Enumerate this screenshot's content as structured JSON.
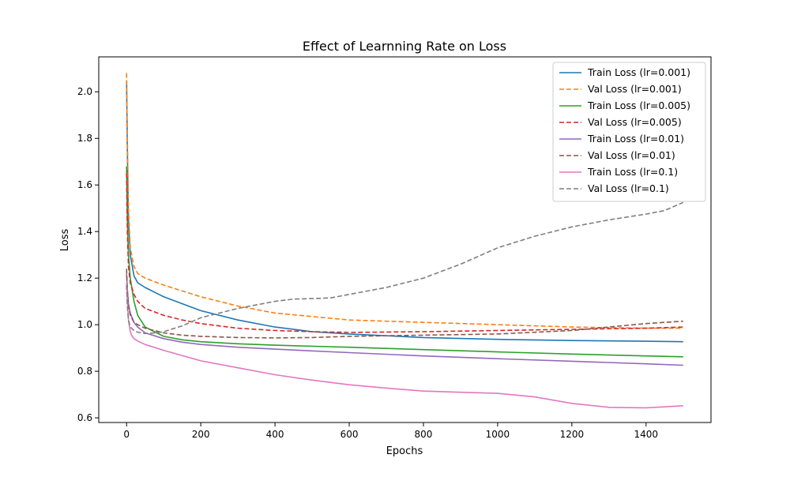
{
  "chart_data": {
    "type": "line",
    "title": "Effect of Learnning Rate on Loss",
    "xlabel": "Epochs",
    "ylabel": "Loss",
    "xlim": [
      -75,
      1575
    ],
    "ylim": [
      0.58,
      2.15
    ],
    "xticks": [
      0,
      200,
      400,
      600,
      800,
      1000,
      1200,
      1400
    ],
    "yticks": [
      0.6,
      0.8,
      1.0,
      1.2,
      1.4,
      1.6,
      1.8,
      2.0
    ],
    "grid": false,
    "legend_position": "top-right",
    "series": [
      {
        "name": "Train Loss (lr=0.001)",
        "color": "#1f77b4",
        "dash": "solid",
        "x": [
          0,
          2,
          5,
          10,
          20,
          30,
          50,
          100,
          200,
          300,
          400,
          500,
          600,
          800,
          1000,
          1200,
          1400,
          1500
        ],
        "y": [
          2.05,
          1.75,
          1.45,
          1.3,
          1.21,
          1.18,
          1.16,
          1.12,
          1.06,
          1.02,
          0.99,
          0.97,
          0.96,
          0.945,
          0.937,
          0.932,
          0.929,
          0.927
        ]
      },
      {
        "name": "Val Loss (lr=0.001)",
        "color": "#ff7f0e",
        "dash": "dashed",
        "x": [
          0,
          2,
          5,
          10,
          20,
          30,
          50,
          100,
          200,
          300,
          400,
          500,
          600,
          800,
          1000,
          1200,
          1400,
          1500
        ],
        "y": [
          2.08,
          1.8,
          1.5,
          1.33,
          1.25,
          1.22,
          1.2,
          1.17,
          1.12,
          1.08,
          1.05,
          1.035,
          1.02,
          1.01,
          1.0,
          0.99,
          0.985,
          0.985
        ]
      },
      {
        "name": "Train Loss (lr=0.005)",
        "color": "#2ca02c",
        "dash": "solid",
        "x": [
          0,
          2,
          5,
          10,
          20,
          30,
          50,
          100,
          150,
          200,
          300,
          400,
          600,
          800,
          1000,
          1200,
          1400,
          1500
        ],
        "y": [
          1.68,
          1.45,
          1.3,
          1.2,
          1.1,
          1.04,
          0.99,
          0.95,
          0.935,
          0.927,
          0.918,
          0.912,
          0.903,
          0.893,
          0.883,
          0.874,
          0.866,
          0.862
        ]
      },
      {
        "name": "Val Loss (lr=0.005)",
        "color": "#d62728",
        "dash": "dashed",
        "x": [
          0,
          2,
          5,
          10,
          20,
          30,
          50,
          100,
          150,
          200,
          300,
          400,
          500,
          600,
          800,
          1000,
          1200,
          1400,
          1500
        ],
        "y": [
          1.65,
          1.4,
          1.25,
          1.18,
          1.13,
          1.1,
          1.07,
          1.04,
          1.02,
          1.005,
          0.985,
          0.975,
          0.97,
          0.967,
          0.97,
          0.975,
          0.98,
          0.985,
          0.99
        ]
      },
      {
        "name": "Train Loss (lr=0.01)",
        "color": "#9467bd",
        "dash": "solid",
        "x": [
          0,
          2,
          5,
          10,
          20,
          30,
          50,
          100,
          150,
          200,
          300,
          400,
          600,
          800,
          1000,
          1200,
          1400,
          1500
        ],
        "y": [
          1.22,
          1.15,
          1.09,
          1.05,
          1.01,
          0.99,
          0.965,
          0.94,
          0.925,
          0.915,
          0.903,
          0.895,
          0.88,
          0.866,
          0.854,
          0.843,
          0.832,
          0.826
        ]
      },
      {
        "name": "Val Loss (lr=0.01)",
        "color": "#8c564b",
        "dash": "dashed",
        "x": [
          0,
          2,
          5,
          10,
          20,
          30,
          50,
          100,
          150,
          200,
          300,
          400,
          500,
          600,
          800,
          1000,
          1200,
          1300,
          1400,
          1500
        ],
        "y": [
          1.24,
          1.15,
          1.08,
          1.04,
          1.01,
          1.0,
          0.985,
          0.965,
          0.955,
          0.95,
          0.945,
          0.943,
          0.945,
          0.95,
          0.955,
          0.96,
          0.975,
          0.99,
          1.005,
          1.015
        ]
      },
      {
        "name": "Train Loss (lr=0.1)",
        "color": "#e377c2",
        "dash": "solid",
        "x": [
          0,
          2,
          5,
          10,
          15,
          20,
          30,
          50,
          100,
          200,
          300,
          400,
          500,
          600,
          700,
          800,
          900,
          1000,
          1100,
          1200,
          1300,
          1400,
          1500
        ],
        "y": [
          1.18,
          1.1,
          1.02,
          0.97,
          0.95,
          0.94,
          0.93,
          0.915,
          0.89,
          0.845,
          0.815,
          0.785,
          0.762,
          0.742,
          0.728,
          0.715,
          0.71,
          0.705,
          0.69,
          0.662,
          0.645,
          0.643,
          0.652
        ]
      },
      {
        "name": "Val Loss (lr=0.1)",
        "color": "#7f7f7f",
        "dash": "dashed",
        "x": [
          0,
          2,
          5,
          10,
          20,
          30,
          50,
          80,
          100,
          150,
          200,
          300,
          400,
          450,
          500,
          550,
          600,
          700,
          800,
          900,
          1000,
          1100,
          1200,
          1300,
          1400,
          1450,
          1500
        ],
        "y": [
          1.17,
          1.08,
          1.02,
          0.99,
          0.975,
          0.968,
          0.962,
          0.965,
          0.97,
          0.995,
          1.03,
          1.07,
          1.1,
          1.11,
          1.112,
          1.115,
          1.13,
          1.16,
          1.2,
          1.26,
          1.33,
          1.38,
          1.42,
          1.45,
          1.475,
          1.49,
          1.525
        ]
      }
    ]
  }
}
